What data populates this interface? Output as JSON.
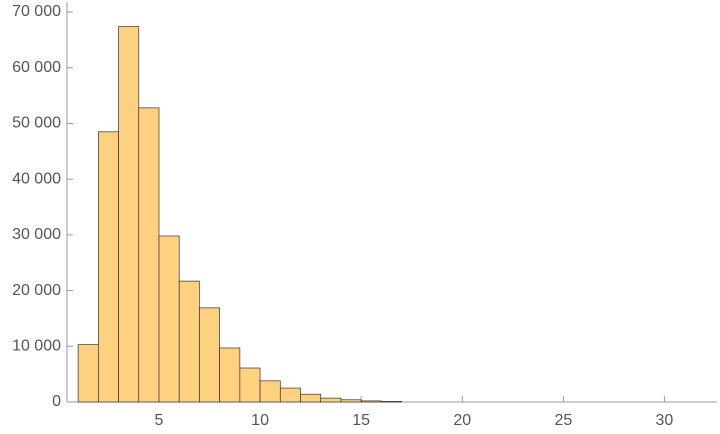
{
  "chart_data": {
    "type": "histogram",
    "bins": [
      1,
      2,
      3,
      4,
      5,
      6,
      7,
      8,
      9,
      10,
      11,
      12,
      13,
      14,
      15,
      16,
      17
    ],
    "values": [
      10300,
      48500,
      67400,
      52800,
      29800,
      21700,
      16900,
      9700,
      6100,
      3800,
      2500,
      1400,
      700,
      400,
      200,
      100
    ],
    "color": "#fed181",
    "xlim": [
      0.45,
      32.6
    ],
    "xticks": [
      5,
      10,
      15,
      20,
      25,
      30
    ],
    "ylim": [
      0,
      71800
    ],
    "yticks": [
      0,
      {
        "value": 10000,
        "label": "10 000"
      },
      {
        "value": 20000,
        "label": "20 000"
      },
      {
        "value": 30000,
        "label": "30 000"
      },
      {
        "value": 40000,
        "label": "40 000"
      },
      {
        "value": 50000,
        "label": "50 000"
      },
      {
        "value": 60000,
        "label": "60 000"
      },
      {
        "value": 70000,
        "label": "70 000"
      }
    ]
  }
}
